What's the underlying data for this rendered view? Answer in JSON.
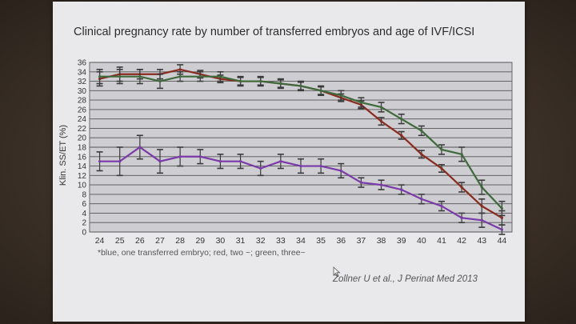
{
  "slide": {
    "title": "Clinical pregnancy rate by number of transferred embryos and age of IVF/ICSI",
    "footnote": "*blue, one transferred embryo; red, two ~; green, three~",
    "citation": "Zollner U et al., J Perinat Med 2013"
  },
  "chart_data": {
    "type": "line",
    "title": "Clinical pregnancy rate by number of transferred embryos and age of IVF/ICSI",
    "xlabel": "",
    "ylabel": "Klin. SS/ET (%)",
    "x": [
      24,
      25,
      26,
      27,
      28,
      29,
      30,
      31,
      32,
      33,
      34,
      35,
      36,
      37,
      38,
      39,
      40,
      41,
      42,
      43,
      44
    ],
    "ylim": [
      0,
      36
    ],
    "yticks": [
      0,
      2,
      4,
      6,
      8,
      10,
      12,
      14,
      16,
      18,
      20,
      22,
      24,
      26,
      28,
      30,
      32,
      34,
      36
    ],
    "grid": true,
    "error_bars": true,
    "series": [
      {
        "color": "#7a3aa8",
        "values": [
          15,
          15,
          18,
          15,
          16,
          16,
          15,
          15,
          13.5,
          15,
          14,
          14,
          13,
          10.5,
          10,
          9,
          7,
          5.5,
          3,
          2.5,
          0.5
        ],
        "err": [
          2,
          3,
          2.5,
          2.5,
          2,
          1.5,
          1.5,
          1.5,
          1.5,
          1.5,
          1.5,
          1.5,
          1.5,
          1,
          1,
          1,
          1,
          1,
          1,
          1.5,
          1
        ]
      },
      {
        "color": "#8b2a1f",
        "values": [
          32.5,
          33.5,
          33.5,
          33.5,
          34.5,
          33.5,
          32.5,
          32,
          32,
          31.5,
          31,
          30,
          28.5,
          27,
          23.5,
          20.5,
          16.5,
          13.5,
          9.5,
          5.5,
          3
        ],
        "err": [
          1.5,
          1.5,
          1,
          1,
          1,
          0.8,
          0.8,
          0.8,
          0.8,
          0.8,
          0.8,
          0.8,
          0.8,
          0.8,
          0.8,
          0.8,
          0.8,
          0.8,
          1,
          1.5,
          1.5
        ]
      },
      {
        "color": "#3f6a3c",
        "values": [
          33,
          33,
          33,
          32,
          33,
          33,
          33,
          32,
          32,
          31.5,
          31,
          30,
          29,
          27.5,
          26.5,
          24,
          21.5,
          17.5,
          16.5,
          9.5,
          5
        ],
        "err": [
          1.5,
          1.5,
          1.5,
          1.5,
          1,
          1,
          1,
          1,
          1,
          1,
          1,
          1,
          1,
          1,
          1,
          1,
          1,
          1,
          1.5,
          1.5,
          1.5
        ]
      }
    ]
  }
}
